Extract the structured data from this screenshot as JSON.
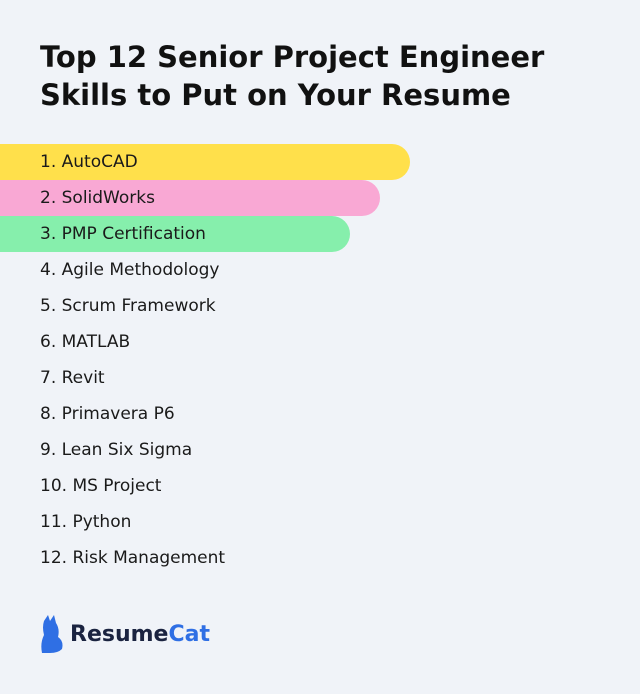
{
  "title": "Top 12 Senior Project Engineer Skills to Put on Your Resume",
  "skills": [
    "1. AutoCAD",
    "2. SolidWorks",
    "3. PMP Certification",
    "4. Agile Methodology",
    "5. Scrum Framework",
    "6. MATLAB",
    "7. Revit",
    "8. Primavera P6",
    "9. Lean Six Sigma",
    "10. MS Project",
    "11. Python",
    "12. Risk Management"
  ],
  "logo": {
    "part1": "Resume",
    "part2": "Cat"
  }
}
